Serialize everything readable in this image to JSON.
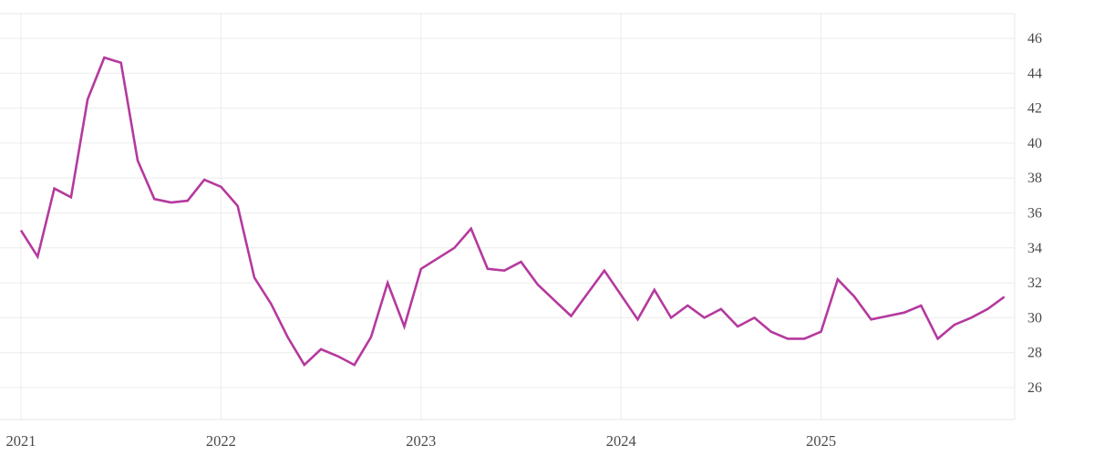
{
  "chart_data": {
    "type": "line",
    "x": [
      "2021-01",
      "2021-02",
      "2021-03",
      "2021-04",
      "2021-05",
      "2021-06",
      "2021-07",
      "2021-08",
      "2021-09",
      "2021-10",
      "2021-11",
      "2021-12",
      "2022-01",
      "2022-02",
      "2022-03",
      "2022-04",
      "2022-05",
      "2022-06",
      "2022-07",
      "2022-08",
      "2022-09",
      "2022-10",
      "2022-11",
      "2022-12",
      "2023-01",
      "2023-02",
      "2023-03",
      "2023-04",
      "2023-05",
      "2023-06",
      "2023-07",
      "2023-08",
      "2023-09",
      "2023-10",
      "2023-11",
      "2023-12",
      "2024-01",
      "2024-02",
      "2024-03",
      "2024-04",
      "2024-05",
      "2024-06",
      "2024-07",
      "2024-08",
      "2024-09",
      "2024-10",
      "2024-11",
      "2024-12",
      "2025-01",
      "2025-02",
      "2025-03",
      "2025-04",
      "2025-05",
      "2025-06",
      "2025-07",
      "2025-08",
      "2025-09",
      "2025-10",
      "2025-11",
      "2025-12"
    ],
    "values": [
      35.0,
      33.5,
      37.4,
      36.9,
      42.5,
      44.9,
      44.6,
      39.0,
      36.8,
      36.6,
      36.7,
      37.9,
      37.5,
      36.4,
      32.3,
      30.8,
      28.9,
      27.3,
      28.2,
      27.8,
      27.3,
      28.9,
      32.0,
      29.5,
      32.8,
      33.4,
      34.0,
      35.1,
      32.8,
      32.7,
      33.2,
      31.9,
      31.0,
      30.1,
      31.4,
      32.7,
      31.3,
      29.9,
      31.6,
      30.0,
      30.7,
      30.0,
      30.5,
      29.5,
      30.0,
      29.2,
      28.8,
      28.8,
      29.2,
      32.2,
      31.2,
      29.9,
      30.1,
      30.3,
      30.7,
      28.8,
      29.6,
      30.0,
      30.5,
      31.2
    ],
    "x_tick_labels": [
      "2021",
      "2022",
      "2023",
      "2024",
      "2025"
    ],
    "y_tick_labels": [
      "26",
      "28",
      "30",
      "32",
      "34",
      "36",
      "38",
      "40",
      "42",
      "44",
      "46"
    ],
    "y_ticks": [
      26,
      28,
      30,
      32,
      34,
      36,
      38,
      40,
      42,
      44,
      46
    ],
    "ylim": [
      24.2,
      47.4
    ],
    "grid": "on",
    "legend": "none",
    "y_axis_side": "right",
    "line_color": "#b5399e",
    "grid_color": "#ececec",
    "frame_color": "#e7e7e7",
    "label_color": "#4a4a4a",
    "background_color": "#ffffff"
  }
}
